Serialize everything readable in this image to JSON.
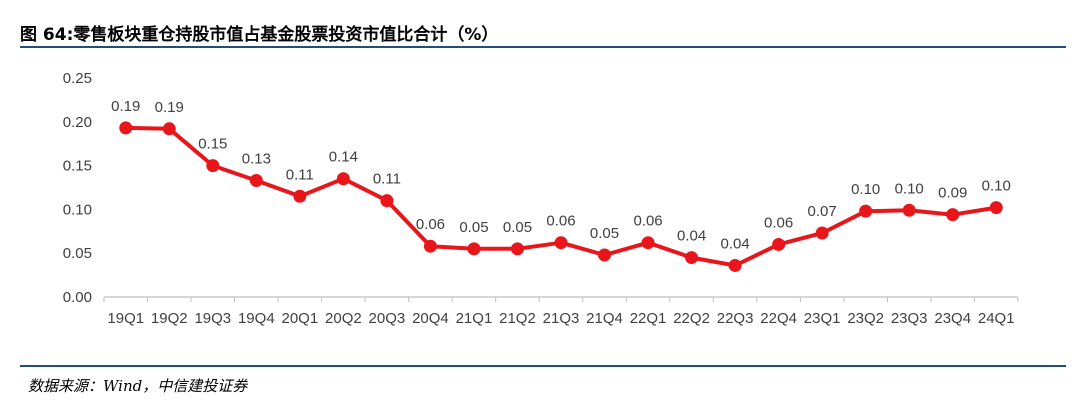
{
  "title": "图 64:零售板块重仓持股市值占基金股票投资市值比合计（%）",
  "source": "数据来源：Wind，中信建投证券",
  "colors": {
    "line": "#e8161b",
    "axis": "#bfbfbf",
    "rule": "#1f4e79"
  },
  "chart_data": {
    "type": "line",
    "title": "图 64:零售板块重仓持股市值占基金股票投资市值比合计（%）",
    "xlabel": "",
    "ylabel": "",
    "categories": [
      "19Q1",
      "19Q2",
      "19Q3",
      "19Q4",
      "20Q1",
      "20Q2",
      "20Q3",
      "20Q4",
      "21Q1",
      "21Q2",
      "21Q3",
      "21Q4",
      "22Q1",
      "22Q2",
      "22Q3",
      "22Q4",
      "23Q1",
      "23Q2",
      "23Q3",
      "23Q4",
      "24Q1"
    ],
    "series": [
      {
        "values": [
          0.193,
          0.192,
          0.15,
          0.133,
          0.115,
          0.135,
          0.11,
          0.058,
          0.055,
          0.055,
          0.062,
          0.048,
          0.062,
          0.045,
          0.036,
          0.06,
          0.073,
          0.098,
          0.099,
          0.094,
          0.102
        ]
      }
    ],
    "data_labels": [
      "0.19",
      "0.19",
      "0.15",
      "0.13",
      "0.11",
      "0.14",
      "0.11",
      "0.06",
      "0.05",
      "0.05",
      "0.06",
      "0.05",
      "0.06",
      "0.04",
      "0.04",
      "0.06",
      "0.07",
      "0.10",
      "0.10",
      "0.09",
      "0.10"
    ],
    "ylim": [
      0,
      0.25
    ],
    "yticks": [
      "0.00",
      "0.05",
      "0.10",
      "0.15",
      "0.20",
      "0.25"
    ],
    "grid": false,
    "legend": "none"
  }
}
